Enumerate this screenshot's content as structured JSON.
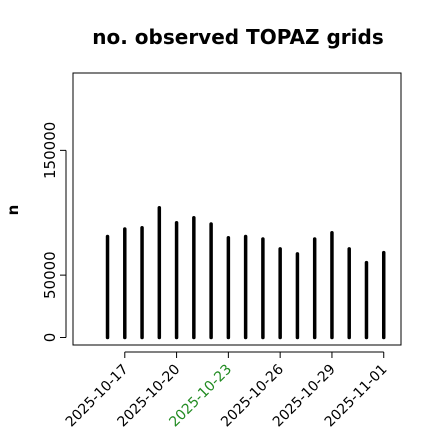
{
  "chart_data": {
    "type": "bar",
    "title": "no. observed TOPAZ grids",
    "xlabel": "",
    "ylabel": "n",
    "ylim": [
      -6000,
      212000
    ],
    "yticks": [
      0,
      50000,
      150000
    ],
    "y_tick_labels": [
      "0",
      "50000",
      "150000"
    ],
    "x_tick_dates": [
      "2025-10-17",
      "2025-10-20",
      "2025-10-23",
      "2025-10-26",
      "2025-10-29",
      "2025-11-01"
    ],
    "x_tick_colors": [
      "#000000",
      "#000000",
      "#228B22",
      "#000000",
      "#000000",
      "#000000"
    ],
    "bar_color": "#000000",
    "xlim": [
      "2025-10-14",
      "2025-11-02"
    ],
    "categories": [
      "2025-10-16",
      "2025-10-17",
      "2025-10-18",
      "2025-10-19",
      "2025-10-20",
      "2025-10-21",
      "2025-10-22",
      "2025-10-23",
      "2025-10-24",
      "2025-10-25",
      "2025-10-26",
      "2025-10-27",
      "2025-10-28",
      "2025-10-29",
      "2025-10-30",
      "2025-10-31",
      "2025-11-01"
    ],
    "values": [
      81000,
      87000,
      88000,
      104000,
      92000,
      96000,
      91000,
      80000,
      81000,
      79000,
      71000,
      67000,
      79000,
      84000,
      71000,
      60000,
      68000
    ]
  }
}
